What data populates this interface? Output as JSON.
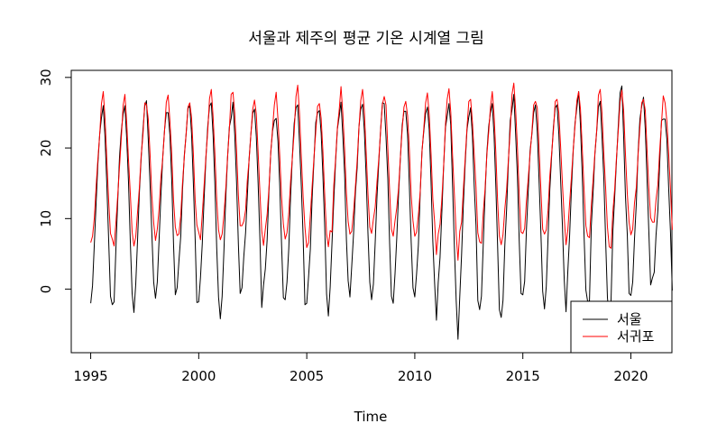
{
  "chart_data": {
    "type": "line",
    "title": "서울과 제주의 평균 기온 시계열 그림",
    "xlabel": "Time",
    "ylabel": "",
    "xlim": [
      1994.1,
      2021.9
    ],
    "ylim": [
      -9,
      31
    ],
    "x_ticks": [
      1995,
      2000,
      2005,
      2010,
      2015,
      2020
    ],
    "y_ticks": [
      0,
      10,
      20,
      30
    ],
    "grid": false,
    "legend_position": "bottom-right",
    "x_start": 1995,
    "frequency": 12,
    "series": [
      {
        "name": "서울",
        "color": "#000000",
        "values": [
          -2.0,
          0.5,
          6.4,
          12.3,
          17.7,
          21.9,
          24.3,
          26.0,
          21.4,
          14.6,
          6.9,
          -1.0,
          -2.2,
          -1.8,
          5.7,
          12.4,
          18.7,
          22.4,
          24.8,
          26.0,
          21.3,
          15.1,
          6.7,
          -0.6,
          -3.3,
          0.7,
          6.9,
          13.6,
          18.5,
          22.6,
          25.9,
          26.7,
          21.2,
          14.8,
          7.8,
          1.0,
          -1.3,
          1.0,
          7.0,
          13.2,
          18.6,
          22.5,
          25.0,
          25.0,
          21.8,
          15.5,
          6.4,
          -0.8,
          0.2,
          4.0,
          7.5,
          14.2,
          19.0,
          22.0,
          25.6,
          26.0,
          22.0,
          15.0,
          7.1,
          -1.9,
          -1.8,
          1.7,
          6.5,
          12.8,
          18.5,
          23.0,
          25.9,
          26.4,
          21.8,
          14.7,
          5.8,
          -1.1,
          -4.2,
          -1.0,
          5.5,
          12.9,
          18.6,
          23.0,
          24.2,
          26.5,
          21.8,
          15.1,
          6.4,
          -0.6,
          0.2,
          4.6,
          8.0,
          13.1,
          18.5,
          22.0,
          24.9,
          25.5,
          21.6,
          15.0,
          7.1,
          -2.6,
          0.6,
          2.9,
          7.0,
          13.9,
          19.4,
          22.4,
          23.9,
          24.2,
          21.0,
          14.6,
          6.3,
          -1.2,
          -1.5,
          1.0,
          5.8,
          13.2,
          18.9,
          23.5,
          25.7,
          26.1,
          20.7,
          14.6,
          7.4,
          -2.2,
          -2.0,
          1.7,
          5.7,
          13.0,
          18.2,
          23.6,
          25.0,
          25.3,
          22.1,
          15.9,
          8.6,
          -0.7,
          -3.8,
          0.3,
          6.5,
          12.6,
          18.1,
          22.7,
          24.5,
          26.5,
          21.8,
          16.3,
          7.0,
          1.2,
          -1.1,
          3.3,
          7.8,
          13.5,
          17.2,
          23.0,
          25.5,
          26.2,
          22.4,
          15.8,
          7.9,
          1.0,
          -1.5,
          0.7,
          6.6,
          13.1,
          18.0,
          22.6,
          26.4,
          26.3,
          21.6,
          15.7,
          6.5,
          -1.0,
          -2.0,
          2.2,
          7.2,
          13.4,
          18.5,
          23.2,
          25.2,
          25.2,
          21.9,
          14.6,
          6.7,
          0.2,
          -1.1,
          2.2,
          6.3,
          13.6,
          19.6,
          22.4,
          24.9,
          25.8,
          22.6,
          15.3,
          6.8,
          0.8,
          -4.4,
          1.0,
          4.5,
          10.9,
          17.4,
          22.9,
          24.5,
          26.3,
          23.2,
          14.6,
          6.0,
          -1.6,
          -7.1,
          -1.0,
          4.9,
          12.1,
          17.9,
          22.6,
          24.4,
          25.7,
          21.7,
          14.6,
          9.0,
          -1.6,
          -2.9,
          -1.0,
          6.3,
          13.4,
          19.3,
          23.0,
          25.0,
          26.3,
          21.8,
          14.5,
          6.3,
          -2.9,
          -4.0,
          -1.6,
          6.1,
          11.3,
          18.0,
          23.9,
          25.4,
          27.6,
          22.0,
          16.0,
          6.8,
          -0.6,
          -0.8,
          1.1,
          8.5,
          13.9,
          19.6,
          21.9,
          25.0,
          26.1,
          22.3,
          15.4,
          8.1,
          -0.3,
          -2.8,
          0.4,
          7.1,
          14.1,
          18.8,
          23.0,
          25.7,
          26.1,
          22.0,
          15.5,
          9.0,
          1.3,
          -3.2,
          2.6,
          7.7,
          14.3,
          19.7,
          23.6,
          25.7,
          28.0,
          23.2,
          16.1,
          7.6,
          -0.1,
          -1.8,
          -1.6,
          8.9,
          13.7,
          19.1,
          22.4,
          25.8,
          26.6,
          21.5,
          15.7,
          7.0,
          -1.2,
          -4.0,
          -1.6,
          8.1,
          13.0,
          18.2,
          23.1,
          27.8,
          28.8,
          21.5,
          13.1,
          7.8,
          -0.6,
          -0.9,
          1.0,
          7.1,
          12.1,
          19.4,
          24.1,
          25.9,
          27.2,
          22.6,
          15.6,
          8.2,
          0.6,
          1.6,
          2.4,
          7.7,
          11.1,
          17.7,
          23.9,
          24.1,
          24.1,
          21.2,
          14.3,
          8.1,
          -0.2
        ]
      },
      {
        "name": "서귀포",
        "color": "#ff0000",
        "values": [
          6.6,
          7.5,
          10.1,
          14.6,
          18.4,
          21.8,
          26.3,
          28.0,
          24.1,
          18.2,
          12.5,
          7.9,
          7.1,
          6.1,
          9.4,
          13.2,
          17.3,
          21.4,
          26.0,
          27.6,
          23.6,
          18.3,
          13.5,
          8.1,
          6.1,
          7.4,
          10.9,
          14.3,
          18.9,
          21.8,
          26.4,
          26.2,
          24.1,
          19.1,
          13.2,
          9.4,
          6.9,
          8.5,
          11.4,
          15.8,
          18.5,
          22.4,
          26.5,
          27.5,
          23.8,
          19.2,
          12.6,
          8.8,
          7.6,
          7.8,
          10.4,
          15.1,
          18.8,
          22.1,
          25.8,
          26.4,
          24.3,
          19.2,
          12.6,
          9.1,
          8.1,
          7.0,
          10.6,
          14.7,
          18.8,
          22.3,
          27.0,
          28.3,
          24.4,
          19.1,
          12.6,
          8.4,
          7.0,
          7.8,
          10.5,
          14.2,
          18.7,
          22.6,
          27.6,
          27.9,
          24.9,
          19.6,
          13.3,
          9.0,
          9.0,
          9.6,
          11.2,
          15.4,
          18.3,
          22.0,
          25.5,
          26.8,
          24.8,
          19.4,
          13.7,
          8.3,
          6.2,
          8.5,
          10.6,
          14.3,
          19.3,
          22.8,
          26.1,
          27.9,
          24.1,
          18.8,
          13.0,
          9.2,
          7.1,
          8.0,
          10.8,
          15.3,
          18.7,
          22.3,
          27.3,
          28.9,
          24.8,
          18.7,
          13.1,
          8.8,
          5.9,
          6.6,
          10.5,
          14.6,
          18.6,
          22.3,
          25.9,
          26.3,
          24.2,
          19.4,
          13.1,
          7.8,
          6.0,
          8.3,
          8.1,
          14.7,
          18.5,
          22.9,
          25.4,
          28.7,
          24.9,
          19.8,
          13.6,
          9.6,
          7.8,
          8.2,
          10.9,
          14.4,
          18.2,
          22.9,
          26.7,
          28.3,
          25.2,
          19.4,
          13.5,
          8.8,
          7.9,
          9.9,
          11.6,
          15.2,
          18.5,
          22.4,
          26.2,
          27.3,
          26.1,
          20.0,
          13.9,
          8.5,
          7.5,
          9.7,
          11.5,
          14.3,
          18.6,
          22.6,
          25.8,
          26.6,
          24.6,
          19.7,
          13.3,
          9.7,
          7.5,
          8.1,
          10.5,
          13.8,
          19.5,
          22.8,
          26.4,
          27.8,
          24.7,
          19.3,
          12.8,
          9.5,
          4.9,
          7.8,
          9.2,
          12.8,
          17.5,
          23.3,
          26.9,
          28.4,
          25.1,
          18.9,
          13.4,
          7.8,
          4.1,
          8.2,
          9.5,
          14.2,
          18.6,
          22.9,
          26.6,
          26.9,
          23.7,
          19.1,
          14.4,
          8.0,
          6.7,
          6.5,
          10.8,
          14.2,
          19.0,
          22.2,
          25.8,
          28.0,
          24.7,
          19.3,
          12.6,
          7.5,
          6.3,
          7.7,
          11.3,
          14.1,
          18.4,
          22.4,
          27.6,
          29.2,
          25.5,
          20.1,
          13.3,
          8.1,
          7.9,
          8.6,
          12.5,
          15.7,
          19.1,
          22.2,
          26.1,
          26.6,
          25.7,
          19.9,
          14.1,
          8.5,
          7.8,
          8.4,
          11.1,
          16.0,
          19.2,
          22.4,
          26.6,
          26.9,
          25.0,
          20.2,
          14.9,
          10.1,
          6.3,
          8.4,
          12.3,
          15.9,
          19.9,
          23.2,
          26.7,
          28.0,
          25.5,
          19.9,
          14.1,
          9.0,
          7.5,
          7.3,
          11.8,
          15.5,
          19.3,
          22.5,
          27.5,
          28.3,
          24.9,
          19.2,
          14.4,
          8.8,
          6.0,
          5.8,
          10.9,
          14.1,
          18.6,
          22.4,
          26.5,
          28.2,
          25.3,
          19.1,
          13.6,
          9.5,
          7.7,
          8.5,
          12.2,
          14.4,
          19.1,
          22.9,
          26.4,
          26.9,
          25.3,
          19.8,
          14.3,
          10.1,
          9.5,
          9.5,
          12.7,
          14.8,
          19.6,
          23.4,
          27.4,
          26.4,
          23.8,
          19.2,
          14.2,
          8.4
        ]
      }
    ]
  }
}
